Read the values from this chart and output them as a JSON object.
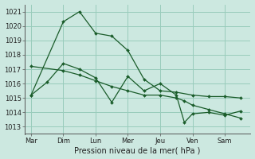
{
  "background_color": "#cce8e0",
  "grid_color": "#99ccbb",
  "line_color": "#1a5c2a",
  "title": "Pression niveau de la mer( hPa )",
  "x_labels": [
    "Mar",
    "Dim",
    "Lun",
    "Mer",
    "Jeu",
    "Ven",
    "Sam"
  ],
  "ylim": [
    1012.5,
    1021.5
  ],
  "yticks": [
    1013,
    1014,
    1015,
    1016,
    1017,
    1018,
    1019,
    1020,
    1021
  ],
  "series1_x": [
    0,
    1,
    1.5,
    2,
    2.5,
    3,
    3.5,
    4,
    4.5,
    5,
    5.5,
    6,
    6.5
  ],
  "series1_y": [
    1015.2,
    1020.3,
    1021.0,
    1019.5,
    1019.3,
    1018.3,
    1016.3,
    1015.5,
    1015.4,
    1015.2,
    1015.1,
    1015.1,
    1015.0
  ],
  "series2_x": [
    0,
    1,
    1.5,
    2,
    2.5,
    3,
    3.5,
    4,
    4.5,
    4.75,
    5,
    5.5,
    6,
    6.5
  ],
  "series2_y": [
    1017.2,
    1016.9,
    1016.6,
    1016.2,
    1015.8,
    1015.5,
    1015.2,
    1015.2,
    1015.0,
    1014.8,
    1014.5,
    1014.2,
    1013.9,
    1013.6
  ],
  "series3_x": [
    0,
    0.5,
    1,
    1.5,
    2,
    2.5,
    3,
    3.5,
    4,
    4.5,
    4.75,
    5,
    5.5,
    6,
    6.5
  ],
  "series3_y": [
    1015.2,
    1016.1,
    1017.4,
    1017.0,
    1016.4,
    1014.7,
    1016.5,
    1015.5,
    1016.0,
    1015.2,
    1013.3,
    1013.9,
    1014.0,
    1013.8,
    1014.1
  ]
}
